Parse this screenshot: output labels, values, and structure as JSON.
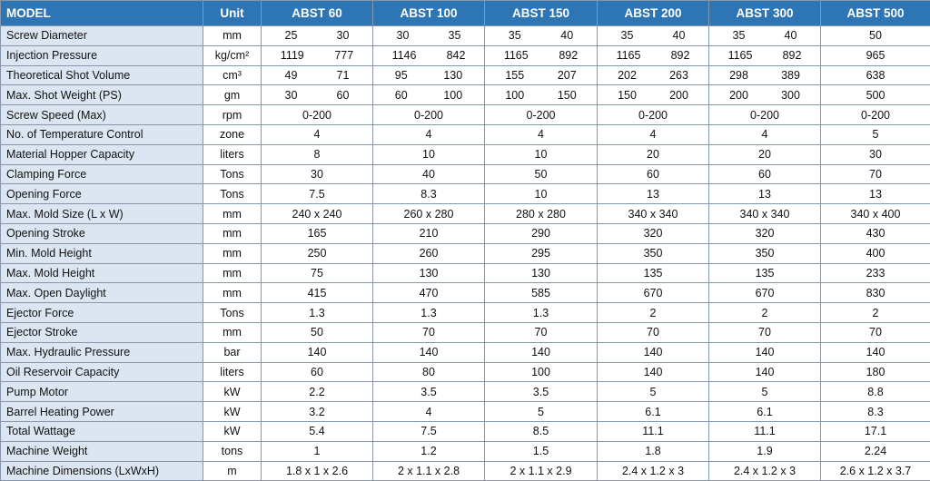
{
  "table": {
    "header": [
      "MODEL",
      "Unit",
      "ABST 60",
      "ABST 100",
      "ABST 150",
      "ABST 200",
      "ABST 300",
      "ABST 500"
    ],
    "rows": [
      {
        "label": "Screw Diameter",
        "unit": "mm",
        "values": [
          [
            "25",
            "30"
          ],
          [
            "30",
            "35"
          ],
          [
            "35",
            "40"
          ],
          [
            "35",
            "40"
          ],
          [
            "35",
            "40"
          ],
          "50"
        ]
      },
      {
        "label": "Injection Pressure",
        "unit": "kg/cm²",
        "values": [
          [
            "1119",
            "777"
          ],
          [
            "1146",
            "842"
          ],
          [
            "1165",
            "892"
          ],
          [
            "1165",
            "892"
          ],
          [
            "1165",
            "892"
          ],
          "965"
        ]
      },
      {
        "label": "Theoretical Shot Volume",
        "unit": "cm³",
        "values": [
          [
            "49",
            "71"
          ],
          [
            "95",
            "130"
          ],
          [
            "155",
            "207"
          ],
          [
            "202",
            "263"
          ],
          [
            "298",
            "389"
          ],
          "638"
        ]
      },
      {
        "label": "Max. Shot Weight (PS)",
        "unit": "gm",
        "values": [
          [
            "30",
            "60"
          ],
          [
            "60",
            "100"
          ],
          [
            "100",
            "150"
          ],
          [
            "150",
            "200"
          ],
          [
            "200",
            "300"
          ],
          "500"
        ]
      },
      {
        "label": "Screw Speed (Max)",
        "unit": "rpm",
        "values": [
          "0-200",
          "0-200",
          "0-200",
          "0-200",
          "0-200",
          "0-200"
        ]
      },
      {
        "label": "No. of Temperature Control",
        "unit": "zone",
        "values": [
          "4",
          "4",
          "4",
          "4",
          "4",
          "5"
        ]
      },
      {
        "label": "Material Hopper Capacity",
        "unit": "liters",
        "values": [
          "8",
          "10",
          "10",
          "20",
          "20",
          "30"
        ]
      },
      {
        "label": "Clamping Force",
        "unit": "Tons",
        "values": [
          "30",
          "40",
          "50",
          "60",
          "60",
          "70"
        ]
      },
      {
        "label": "Opening Force",
        "unit": "Tons",
        "values": [
          "7.5",
          "8.3",
          "10",
          "13",
          "13",
          "13"
        ]
      },
      {
        "label": "Max. Mold Size (L x W)",
        "unit": "mm",
        "values": [
          "240 x 240",
          "260 x 280",
          "280 x 280",
          "340 x 340",
          "340 x 340",
          "340 x 400"
        ]
      },
      {
        "label": "Opening Stroke",
        "unit": "mm",
        "values": [
          "165",
          "210",
          "290",
          "320",
          "320",
          "430"
        ]
      },
      {
        "label": "Min. Mold Height",
        "unit": "mm",
        "values": [
          "250",
          "260",
          "295",
          "350",
          "350",
          "400"
        ]
      },
      {
        "label": "Max. Mold Height",
        "unit": "mm",
        "values": [
          "75",
          "130",
          "130",
          "135",
          "135",
          "233"
        ]
      },
      {
        "label": "Max. Open Daylight",
        "unit": "mm",
        "values": [
          "415",
          "470",
          "585",
          "670",
          "670",
          "830"
        ]
      },
      {
        "label": "Ejector Force",
        "unit": "Tons",
        "values": [
          "1.3",
          "1.3",
          "1.3",
          "2",
          "2",
          "2"
        ]
      },
      {
        "label": "Ejector Stroke",
        "unit": "mm",
        "values": [
          "50",
          "70",
          "70",
          "70",
          "70",
          "70"
        ]
      },
      {
        "label": "Max. Hydraulic Pressure",
        "unit": "bar",
        "values": [
          "140",
          "140",
          "140",
          "140",
          "140",
          "140"
        ]
      },
      {
        "label": "Oil Reservoir Capacity",
        "unit": "liters",
        "values": [
          "60",
          "80",
          "100",
          "140",
          "140",
          "180"
        ]
      },
      {
        "label": "Pump Motor",
        "unit": "kW",
        "values": [
          "2.2",
          "3.5",
          "3.5",
          "5",
          "5",
          "8.8"
        ]
      },
      {
        "label": "Barrel Heating Power",
        "unit": "kW",
        "values": [
          "3.2",
          "4",
          "5",
          "6.1",
          "6.1",
          "8.3"
        ]
      },
      {
        "label": "Total Wattage",
        "unit": "kW",
        "values": [
          "5.4",
          "7.5",
          "8.5",
          "11.1",
          "11.1",
          "17.1"
        ]
      },
      {
        "label": "Machine Weight",
        "unit": "tons",
        "values": [
          "1",
          "1.2",
          "1.5",
          "1.8",
          "1.9",
          "2.24"
        ]
      },
      {
        "label": "Machine Dimensions (LxWxH)",
        "unit": "m",
        "values": [
          "1.8 x 1 x 2.6",
          "2 x 1.1 x 2.8",
          "2 x 1.1 x 2.9",
          "2.4 x 1.2 x 3",
          "2.4 x 1.2 x 3",
          "2.6 x 1.2 x 3.7"
        ]
      }
    ]
  }
}
